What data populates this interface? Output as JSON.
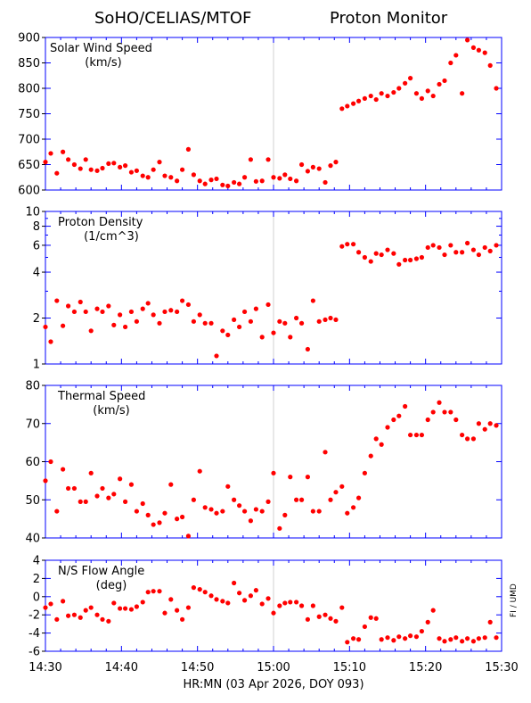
{
  "header": {
    "left_title": "SoHO/CELIAS/MTOF",
    "right_title": "Proton Monitor"
  },
  "credit": "FI / UMD",
  "x_axis": {
    "label": "HR:MN (03 Apr 2026, DOY 093)",
    "tick_labels": [
      "14:30",
      "14:40",
      "14:50",
      "15:00",
      "15:10",
      "15:20",
      "15:30"
    ]
  },
  "chart_data": [
    {
      "type": "scatter",
      "title": "Solar Wind Speed",
      "units": "(km/s)",
      "ylim": [
        600,
        900
      ],
      "yticks": [
        "600",
        "650",
        "700",
        "750",
        "800",
        "850",
        "900"
      ],
      "xlim": [
        0,
        60
      ],
      "x_unit": "minutes after 14:30",
      "grid": false,
      "point_color": "#ff0000",
      "x": [
        0,
        0.7,
        1.5,
        2.3,
        3,
        3.8,
        4.6,
        5.3,
        6,
        6.8,
        7.5,
        8.3,
        9,
        9.8,
        10.5,
        11.3,
        12,
        12.8,
        13.5,
        14.2,
        15,
        15.7,
        16.5,
        17.3,
        18,
        18.8,
        19.5,
        20.3,
        21,
        21.8,
        22.5,
        23.3,
        24,
        24.8,
        25.5,
        26.2,
        27,
        27.7,
        28.5,
        29.3,
        30,
        30.8,
        31.5,
        32.2,
        33,
        33.7,
        34.5,
        35.2,
        36,
        36.8,
        37.5,
        38.2,
        39,
        39.7,
        40.5,
        41.2,
        42,
        42.8,
        43.5,
        44.2,
        45,
        45.8,
        46.5,
        47.3,
        48,
        48.8,
        49.5,
        50.3,
        51,
        51.8,
        52.5,
        53.3,
        54,
        54.8,
        55.5,
        56.3,
        57,
        57.8,
        58.5,
        59.3
      ],
      "y": [
        655,
        672,
        633,
        675,
        660,
        650,
        642,
        660,
        640,
        638,
        643,
        652,
        653,
        645,
        648,
        635,
        638,
        628,
        625,
        640,
        655,
        628,
        625,
        618,
        640,
        680,
        630,
        618,
        612,
        620,
        622,
        610,
        608,
        615,
        612,
        625,
        660,
        617,
        618,
        660,
        625,
        623,
        630,
        622,
        618,
        650,
        637,
        645,
        642,
        615,
        648,
        655,
        760,
        765,
        770,
        775,
        780,
        785,
        778,
        790,
        785,
        792,
        800,
        810,
        820,
        790,
        780,
        795,
        785,
        808,
        815,
        850,
        865,
        790,
        895,
        880,
        875,
        870,
        845,
        800
      ]
    },
    {
      "type": "scatter",
      "title": "Proton Density",
      "units": "(1/cm^3)",
      "scale": "log",
      "ylim": [
        1,
        10
      ],
      "yticks": [
        "1",
        "2",
        "4",
        "6",
        "8",
        "10"
      ],
      "xlim": [
        0,
        60
      ],
      "x_unit": "minutes after 14:30",
      "grid": false,
      "point_color": "#ff0000",
      "x": [
        0,
        0.7,
        1.5,
        2.3,
        3,
        3.8,
        4.6,
        5.3,
        6,
        6.8,
        7.5,
        8.3,
        9,
        9.8,
        10.5,
        11.3,
        12,
        12.8,
        13.5,
        14.2,
        15,
        15.7,
        16.5,
        17.3,
        18,
        18.8,
        19.5,
        20.3,
        21,
        21.8,
        22.5,
        23.3,
        24,
        24.8,
        25.5,
        26.2,
        27,
        27.7,
        28.5,
        29.3,
        30,
        30.8,
        31.5,
        32.2,
        33,
        33.7,
        34.5,
        35.2,
        36,
        36.8,
        37.5,
        38.2,
        39,
        39.7,
        40.5,
        41.2,
        42,
        42.8,
        43.5,
        44.2,
        45,
        45.8,
        46.5,
        47.3,
        48,
        48.8,
        49.5,
        50.3,
        51,
        51.8,
        52.5,
        53.3,
        54,
        54.8,
        55.5,
        56.3,
        57,
        57.8,
        58.5,
        59.3
      ],
      "y": [
        1.75,
        1.4,
        2.6,
        1.78,
        2.4,
        2.2,
        2.55,
        2.2,
        1.65,
        2.3,
        2.2,
        2.4,
        1.8,
        2.1,
        1.75,
        2.2,
        1.9,
        2.3,
        2.5,
        2.1,
        1.85,
        2.2,
        2.25,
        2.2,
        2.6,
        2.45,
        1.9,
        2.1,
        1.85,
        1.85,
        1.13,
        1.65,
        1.55,
        1.95,
        1.75,
        2.2,
        1.9,
        2.3,
        1.5,
        2.45,
        1.6,
        1.9,
        1.85,
        1.5,
        2.0,
        1.85,
        1.25,
        2.6,
        1.9,
        1.95,
        2.0,
        1.95,
        5.9,
        6.1,
        6.1,
        5.4,
        5.0,
        4.7,
        5.3,
        5.2,
        5.6,
        5.3,
        4.5,
        4.8,
        4.8,
        4.9,
        5.0,
        5.8,
        6.0,
        5.8,
        5.2,
        6.0,
        5.4,
        5.4,
        6.2,
        5.6,
        5.2,
        5.8,
        5.5,
        6.0
      ]
    },
    {
      "type": "scatter",
      "title": "Thermal Speed",
      "units": "(km/s)",
      "ylim": [
        40,
        80
      ],
      "yticks": [
        "40",
        "50",
        "60",
        "70",
        "80"
      ],
      "xlim": [
        0,
        60
      ],
      "x_unit": "minutes after 14:30",
      "grid": false,
      "point_color": "#ff0000",
      "x": [
        0,
        0.7,
        1.5,
        2.3,
        3,
        3.8,
        4.6,
        5.3,
        6,
        6.8,
        7.5,
        8.3,
        9,
        9.8,
        10.5,
        11.3,
        12,
        12.8,
        13.5,
        14.2,
        15,
        15.7,
        16.5,
        17.3,
        18,
        18.8,
        19.5,
        20.3,
        21,
        21.8,
        22.5,
        23.3,
        24,
        24.8,
        25.5,
        26.2,
        27,
        27.7,
        28.5,
        29.3,
        30,
        30.8,
        31.5,
        32.2,
        33,
        33.7,
        34.5,
        35.2,
        36,
        36.8,
        37.5,
        38.2,
        39,
        39.7,
        40.5,
        41.2,
        42,
        42.8,
        43.5,
        44.2,
        45,
        45.8,
        46.5,
        47.3,
        48,
        48.8,
        49.5,
        50.3,
        51,
        51.8,
        52.5,
        53.3,
        54,
        54.8,
        55.5,
        56.3,
        57,
        57.8,
        58.5,
        59.3
      ],
      "y": [
        55,
        60,
        47,
        58,
        53,
        53,
        49.5,
        49.5,
        57,
        51,
        53,
        50.5,
        51.5,
        55.5,
        49.5,
        54,
        47,
        49,
        46,
        43.5,
        44,
        46.5,
        54,
        45,
        45.5,
        40.5,
        50,
        57.5,
        48,
        47.5,
        46.5,
        47,
        53.5,
        50,
        48.5,
        47,
        44.5,
        47.5,
        47,
        49.5,
        57,
        42.5,
        46,
        56,
        50,
        50,
        56,
        47,
        47,
        62.5,
        50,
        52,
        53.5,
        46.5,
        48,
        50.5,
        57,
        61.5,
        66,
        64.5,
        69,
        71,
        72,
        74.5,
        67,
        67,
        67,
        71,
        73,
        75.5,
        73,
        73,
        71,
        67,
        66,
        66,
        70,
        68.5,
        70,
        69.5
      ]
    },
    {
      "type": "scatter",
      "title": "N/S Flow Angle",
      "units": "(deg)",
      "ylim": [
        -6,
        4
      ],
      "yticks": [
        "-6",
        "-4",
        "-2",
        "0",
        "2",
        "4"
      ],
      "xlim": [
        0,
        60
      ],
      "x_unit": "minutes after 14:30",
      "grid": false,
      "point_color": "#ff0000",
      "x": [
        0,
        0.7,
        1.5,
        2.3,
        3,
        3.8,
        4.6,
        5.3,
        6,
        6.8,
        7.5,
        8.3,
        9,
        9.8,
        10.5,
        11.3,
        12,
        12.8,
        13.5,
        14.2,
        15,
        15.7,
        16.5,
        17.3,
        18,
        18.8,
        19.5,
        20.3,
        21,
        21.8,
        22.5,
        23.3,
        24,
        24.8,
        25.5,
        26.2,
        27,
        27.7,
        28.5,
        29.3,
        30,
        30.8,
        31.5,
        32.2,
        33,
        33.7,
        34.5,
        35.2,
        36,
        36.8,
        37.5,
        38.2,
        39,
        39.7,
        40.5,
        41.2,
        42,
        42.8,
        43.5,
        44.2,
        45,
        45.8,
        46.5,
        47.3,
        48,
        48.8,
        49.5,
        50.3,
        51,
        51.8,
        52.5,
        53.3,
        54,
        54.8,
        55.5,
        56.3,
        57,
        57.8,
        58.5,
        59.3
      ],
      "y": [
        -1.2,
        -0.8,
        -2.5,
        -0.5,
        -2.1,
        -2.0,
        -2.3,
        -1.5,
        -1.2,
        -2.0,
        -2.5,
        -2.7,
        -0.7,
        -1.3,
        -1.3,
        -1.4,
        -1.1,
        -0.6,
        0.5,
        0.6,
        0.6,
        -1.8,
        -0.3,
        -1.5,
        -2.5,
        -1.2,
        1.0,
        0.8,
        0.5,
        0.1,
        -0.3,
        -0.5,
        -0.7,
        1.5,
        0.4,
        -0.4,
        0.1,
        0.7,
        -0.8,
        -0.2,
        -1.8,
        -1.0,
        -0.7,
        -0.6,
        -0.6,
        -1.0,
        -2.5,
        -1.0,
        -2.2,
        -2.0,
        -2.4,
        -2.7,
        -1.2,
        -5.0,
        -4.6,
        -4.7,
        -3.3,
        -2.3,
        -2.4,
        -4.7,
        -4.5,
        -4.8,
        -4.4,
        -4.6,
        -4.3,
        -4.4,
        -3.8,
        -2.8,
        -1.5,
        -4.6,
        -4.9,
        -4.7,
        -4.5,
        -4.9,
        -4.6,
        -4.9,
        -4.6,
        -4.5,
        -2.8,
        -4.5
      ]
    }
  ]
}
